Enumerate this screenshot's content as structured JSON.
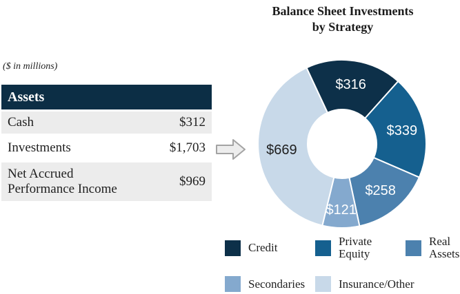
{
  "title": {
    "line1": "Balance Sheet Investments",
    "line2": "by Strategy"
  },
  "table": {
    "units_note": "($ in millions)",
    "header": "Assets",
    "rows": [
      {
        "label": "Cash",
        "value": "$312"
      },
      {
        "label": "Investments",
        "value": "$1,703"
      },
      {
        "label": "Net Accrued Performance Income",
        "value": "$969"
      }
    ]
  },
  "icons": {
    "flow_arrow": "right-block-arrow"
  },
  "colors": {
    "table_header_bg": "#0C2E45",
    "table_header_text": "#FFFFFF",
    "row_alt_bg": "#ECECEC",
    "text": "#1F1F1F",
    "arrow_fill": "#EDEDED",
    "arrow_stroke": "#A3A3A3"
  },
  "chart_data": {
    "type": "pie",
    "subtype": "donut",
    "title": "Balance Sheet Investments by Strategy",
    "units": "$ in millions",
    "total": 1703,
    "start_angle_deg": -25,
    "outer_radius_px": 122,
    "inner_radius_px": 50,
    "separator_color": "#FFFFFF",
    "legend_position": "bottom",
    "segments": [
      {
        "label": "Credit",
        "value": 316,
        "display": "$316",
        "color": "#0D3049",
        "label_color": "#FFFFFF",
        "label_radius_px": 87,
        "legend_lines": [
          "Credit"
        ]
      },
      {
        "label": "Private Equity",
        "value": 339,
        "display": "$339",
        "color": "#15608F",
        "label_color": "#FFFFFF",
        "label_radius_px": 89,
        "legend_lines": [
          "Private",
          "Equity"
        ]
      },
      {
        "label": "Real Assets",
        "value": 258,
        "display": "$258",
        "color": "#4C81AE",
        "label_color": "#FFFFFF",
        "label_radius_px": 88,
        "legend_lines": [
          "Real",
          "Assets"
        ]
      },
      {
        "label": "Secondaries",
        "value": 121,
        "display": "$121",
        "color": "#84A9CE",
        "label_color": "#FFFFFF",
        "label_radius_px": 96,
        "legend_lines": [
          "Secondaries"
        ]
      },
      {
        "label": "Insurance/Other",
        "value": 669,
        "display": "$669",
        "color": "#C8D9E9",
        "label_color": "#1F1F1F",
        "label_radius_px": 88,
        "legend_lines": [
          "Insurance/Other"
        ]
      }
    ],
    "legend_rows": [
      [
        0,
        1,
        2
      ],
      [
        3,
        4
      ]
    ]
  }
}
